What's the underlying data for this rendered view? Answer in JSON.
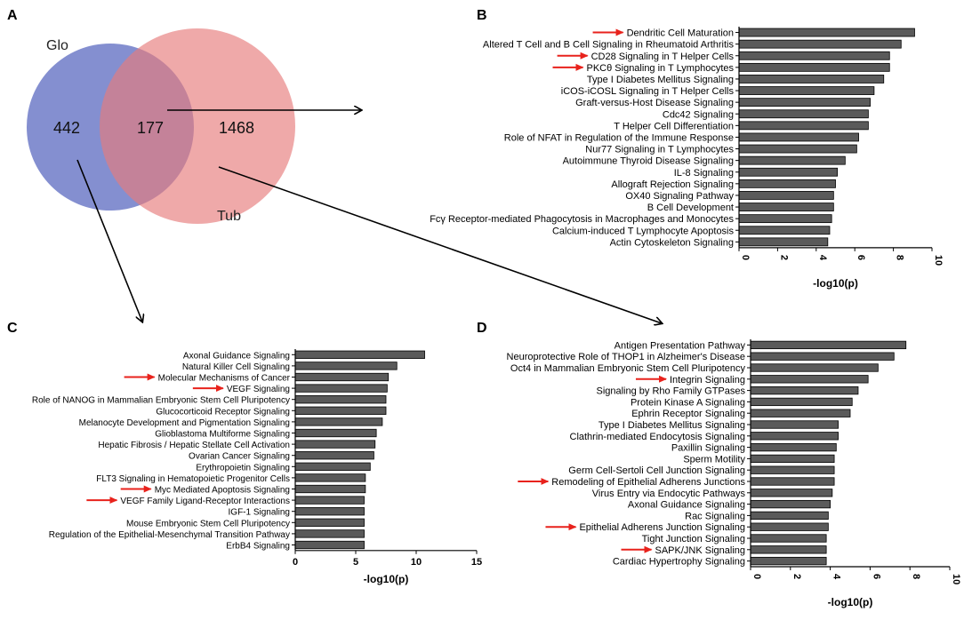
{
  "figure": {
    "panel_labels": [
      "A",
      "B",
      "C",
      "D"
    ]
  },
  "venn": {
    "set_left": "Glo",
    "set_right": "Tub",
    "left_only": "442",
    "overlap": "177",
    "right_only": "1468",
    "left_color": "#6f7bc8",
    "right_color": "#e77b7b"
  },
  "arrow_color": "#e8221c",
  "bar_color": "#5a5a5a",
  "chart_data": [
    {
      "panel": "B",
      "type": "bar",
      "orientation": "horizontal",
      "xlabel": "-log10(p)",
      "ylabel": "",
      "xlim": [
        0,
        10
      ],
      "xticks": [
        0,
        2,
        4,
        6,
        8,
        10
      ],
      "categories": [
        "Dendritic Cell Maturation",
        "Altered T Cell and B Cell Signaling in Rheumatoid Arthritis",
        "CD28 Signaling in T Helper Cells",
        "PKCθ Signaling in T Lymphocytes",
        "Type I Diabetes Mellitus Signaling",
        "iCOS-iCOSL Signaling in T Helper Cells",
        "Graft-versus-Host Disease Signaling",
        "Cdc42 Signaling",
        "T Helper Cell Differentiation",
        "Role of NFAT in Regulation of the Immune Response",
        "Nur77 Signaling in T Lymphocytes",
        "Autoimmune Thyroid Disease Signaling",
        "IL-8 Signaling",
        "Allograft Rejection Signaling",
        "OX40 Signaling Pathway",
        "B Cell Development",
        "Fcγ Receptor-mediated Phagocytosis in Macrophages and Monocytes",
        "Calcium-induced T Lymphocyte Apoptosis",
        "Actin Cytoskeleton Signaling"
      ],
      "values": [
        9.1,
        8.4,
        7.8,
        7.8,
        7.5,
        7.0,
        6.8,
        6.7,
        6.7,
        6.2,
        6.1,
        5.5,
        5.1,
        5.0,
        4.9,
        4.9,
        4.8,
        4.7,
        4.6
      ],
      "highlighted": [
        "Dendritic Cell Maturation",
        "CD28 Signaling in T Helper Cells",
        "PKCθ Signaling in T Lymphocytes"
      ]
    },
    {
      "panel": "C",
      "type": "bar",
      "orientation": "horizontal",
      "xlabel": "-log10(p)",
      "ylabel": "",
      "xlim": [
        0,
        15
      ],
      "xticks": [
        0,
        5,
        10,
        15
      ],
      "categories": [
        "Axonal Guidance Signaling",
        "Natural Killer Cell Signaling",
        "Molecular Mechanisms of Cancer",
        "VEGF Signaling",
        "Role of NANOG in Mammalian Embryonic Stem Cell Pluripotency",
        "Glucocorticoid Receptor Signaling",
        "Melanocyte Development and Pigmentation Signaling",
        "Glioblastoma Multiforme Signaling",
        "Hepatic Fibrosis / Hepatic Stellate Cell Activation",
        "Ovarian Cancer Signaling",
        "Erythropoietin Signaling",
        "FLT3 Signaling in Hematopoietic Progenitor Cells",
        "Myc Mediated Apoptosis Signaling",
        "VEGF Family Ligand-Receptor Interactions",
        "IGF-1 Signaling",
        "Mouse Embryonic Stem Cell Pluripotency",
        "Regulation of the Epithelial-Mesenchymal Transition Pathway",
        "ErbB4 Signaling"
      ],
      "values": [
        10.7,
        8.4,
        7.7,
        7.6,
        7.5,
        7.5,
        7.2,
        6.7,
        6.6,
        6.5,
        6.2,
        5.8,
        5.8,
        5.7,
        5.7,
        5.7,
        5.7,
        5.7
      ],
      "highlighted": [
        "Molecular Mechanisms of Cancer",
        "VEGF Signaling",
        "Myc Mediated Apoptosis Signaling",
        "VEGF Family Ligand-Receptor Interactions"
      ]
    },
    {
      "panel": "D",
      "type": "bar",
      "orientation": "horizontal",
      "xlabel": "-log10(p)",
      "ylabel": "",
      "xlim": [
        0,
        10
      ],
      "xticks": [
        0,
        2,
        4,
        6,
        8,
        10
      ],
      "categories": [
        "Antigen Presentation Pathway",
        "Neuroprotective Role of THOP1 in Alzheimer's Disease",
        "Oct4 in Mammalian Embryonic Stem Cell Pluripotency",
        "Integrin Signaling",
        "Signaling by Rho Family GTPases",
        "Protein Kinase A Signaling",
        "Ephrin Receptor Signaling",
        "Type I Diabetes Mellitus Signaling",
        "Clathrin-mediated Endocytosis Signaling",
        "Paxillin Signaling",
        "Sperm Motility",
        "Germ Cell-Sertoli Cell Junction Signaling",
        "Remodeling of Epithelial Adherens Junctions",
        "Virus Entry via Endocytic Pathways",
        "Axonal Guidance Signaling",
        "Rac Signaling",
        "Epithelial Adherens Junction Signaling",
        "Tight Junction Signaling",
        "SAPK/JNK Signaling",
        "Cardiac Hypertrophy Signaling"
      ],
      "values": [
        7.8,
        7.2,
        6.4,
        5.9,
        5.4,
        5.1,
        5.0,
        4.4,
        4.4,
        4.3,
        4.2,
        4.2,
        4.2,
        4.1,
        4.0,
        3.9,
        3.9,
        3.8,
        3.8,
        3.8
      ],
      "highlighted": [
        "Integrin Signaling",
        "Remodeling of Epithelial Adherens Junctions",
        "Epithelial Adherens Junction Signaling",
        "SAPK/JNK Signaling"
      ]
    }
  ]
}
